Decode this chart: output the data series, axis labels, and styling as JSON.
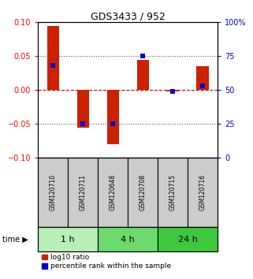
{
  "title": "GDS3433 / 952",
  "samples": [
    "GSM120710",
    "GSM120711",
    "GSM120648",
    "GSM120708",
    "GSM120715",
    "GSM120716"
  ],
  "log10_ratio": [
    0.095,
    -0.055,
    -0.08,
    0.045,
    -0.002,
    0.035
  ],
  "percentile_rank": [
    68,
    25,
    25,
    75,
    49,
    53
  ],
  "time_groups": [
    {
      "label": "1 h",
      "indices": [
        0,
        1
      ],
      "color": "#b8f0b8"
    },
    {
      "label": "4 h",
      "indices": [
        2,
        3
      ],
      "color": "#6dda6d"
    },
    {
      "label": "24 h",
      "indices": [
        4,
        5
      ],
      "color": "#3ec83e"
    }
  ],
  "ylim_left": [
    -0.1,
    0.1
  ],
  "ylim_right": [
    0,
    100
  ],
  "yticks_left": [
    -0.1,
    -0.05,
    0,
    0.05,
    0.1
  ],
  "yticks_right": [
    0,
    25,
    50,
    75,
    100
  ],
  "ytick_labels_right": [
    "0",
    "25",
    "50",
    "75",
    "100%"
  ],
  "bar_color": "#cc2200",
  "dot_color": "#0000cc",
  "hline_color": "#cc0000",
  "dotted_color": "#555555",
  "background_color": "#ffffff",
  "sample_box_color": "#cccccc",
  "bar_width": 0.4,
  "legend_log10": "log10 ratio",
  "legend_percentile": "percentile rank within the sample"
}
